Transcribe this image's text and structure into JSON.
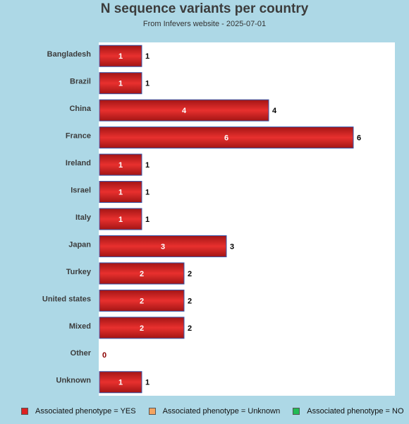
{
  "chart_data": {
    "type": "bar",
    "orientation": "horizontal",
    "title": "N sequence variants per country",
    "subtitle": "From Infevers website - 2025-07-01",
    "categories": [
      "Bangladesh",
      "Brazil",
      "China",
      "France",
      "Ireland",
      "Israel",
      "Italy",
      "Japan",
      "Turkey",
      "United states",
      "Mixed",
      "Other",
      "Unknown"
    ],
    "series": [
      {
        "name": "Associated phenotype = YES",
        "color": "#dd2222",
        "values": [
          1,
          1,
          4,
          6,
          1,
          1,
          1,
          3,
          2,
          2,
          2,
          0,
          1
        ]
      },
      {
        "name": "Associated phenotype = Unknown",
        "color": "#f4a460",
        "values": [
          0,
          0,
          0,
          0,
          0,
          0,
          0,
          0,
          0,
          0,
          0,
          0,
          0
        ]
      },
      {
        "name": "Associated phenotype = NO",
        "color": "#22bb55",
        "values": [
          0,
          0,
          0,
          0,
          0,
          0,
          0,
          0,
          0,
          0,
          0,
          0,
          0
        ]
      }
    ],
    "totals": [
      1,
      1,
      4,
      6,
      1,
      1,
      1,
      3,
      2,
      2,
      2,
      0,
      1
    ],
    "xlim": [
      0,
      7
    ],
    "grid": false,
    "legend_position": "bottom"
  }
}
